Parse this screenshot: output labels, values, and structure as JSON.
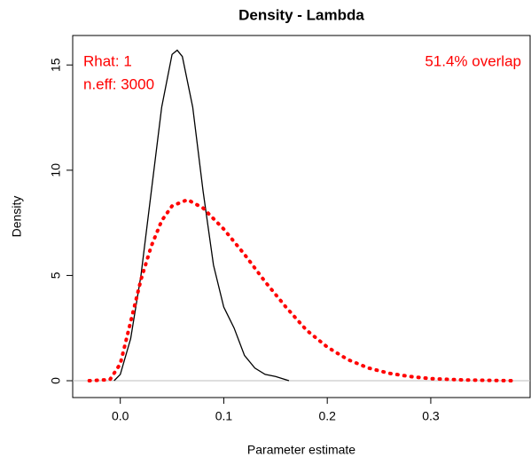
{
  "chart_data": {
    "type": "line",
    "title": "Density - Lambda",
    "x_label": "Parameter estimate",
    "y_label": "Density",
    "xlim": [
      -0.046,
      0.396
    ],
    "ylim": [
      -0.8,
      16.4
    ],
    "xticks": [
      {
        "value": 0,
        "label": "0.0"
      },
      0.1,
      0.2,
      0.3
    ],
    "yticks": [
      0,
      5,
      10,
      15
    ],
    "zero_line": true,
    "annotations": [
      "Rhat: 1",
      "n.eff: 3000",
      "51.4% overlap"
    ],
    "series": [
      {
        "color": "#000000",
        "style": "solid",
        "x": [
          -0.006,
          0.0,
          0.01,
          0.02,
          0.03,
          0.04,
          0.05,
          0.055,
          0.06,
          0.07,
          0.08,
          0.09,
          0.1,
          0.11,
          0.12,
          0.13,
          0.14,
          0.15,
          0.163
        ],
        "values": [
          0,
          0.3,
          2,
          5,
          9,
          13,
          15.5,
          15.7,
          15.4,
          13,
          9,
          5.5,
          3.5,
          2.5,
          1.2,
          0.6,
          0.3,
          0.2,
          0
        ]
      },
      {
        "color": "#ff0000",
        "style": "dotted",
        "x": [
          -0.03,
          -0.01,
          0.0,
          0.01,
          0.02,
          0.03,
          0.04,
          0.05,
          0.065,
          0.08,
          0.1,
          0.12,
          0.14,
          0.16,
          0.18,
          0.2,
          0.22,
          0.24,
          0.26,
          0.28,
          0.3,
          0.33,
          0.38
        ],
        "values": [
          0,
          0.05,
          0.8,
          2.8,
          4.8,
          6.4,
          7.6,
          8.3,
          8.6,
          8.2,
          7.2,
          6.0,
          4.7,
          3.5,
          2.4,
          1.6,
          1.0,
          0.6,
          0.35,
          0.2,
          0.1,
          0.04,
          0
        ]
      }
    ]
  }
}
